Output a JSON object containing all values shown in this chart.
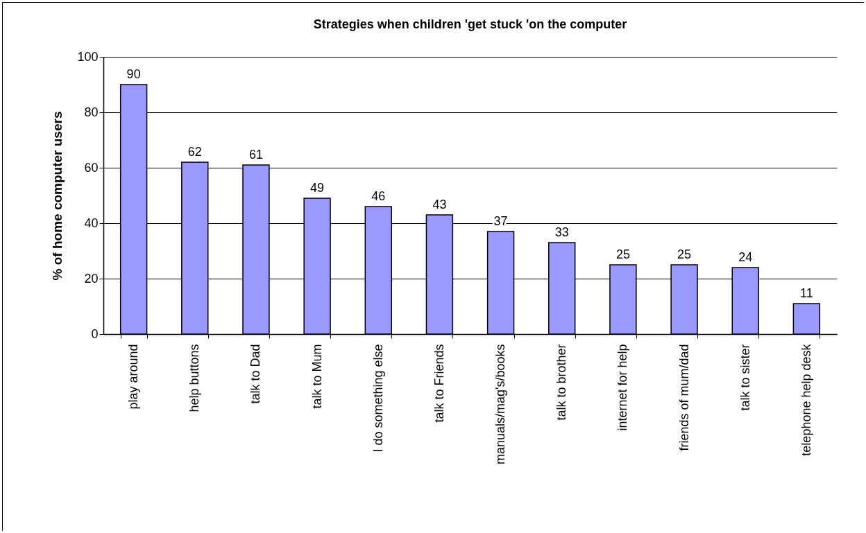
{
  "chart_data": {
    "type": "bar",
    "title": "Strategies when children 'get stuck 'on the computer",
    "ylabel": "% of home computer users",
    "categories": [
      "play around",
      "help buttons",
      "talk to Dad",
      "talk to Mum",
      "I do something else",
      "talk to Friends",
      "manuals/mag's/books",
      "talk to brother",
      "internet for help",
      "friends of mum/dad",
      "talk to sister",
      "telephone help desk"
    ],
    "values": [
      90,
      62,
      61,
      49,
      46,
      43,
      37,
      33,
      25,
      25,
      24,
      11
    ],
    "color": "#9999ff",
    "ylim": [
      0,
      100
    ],
    "yticks": [
      0,
      20,
      40,
      60,
      80,
      100
    ],
    "grid": "y",
    "data_labels": true
  }
}
